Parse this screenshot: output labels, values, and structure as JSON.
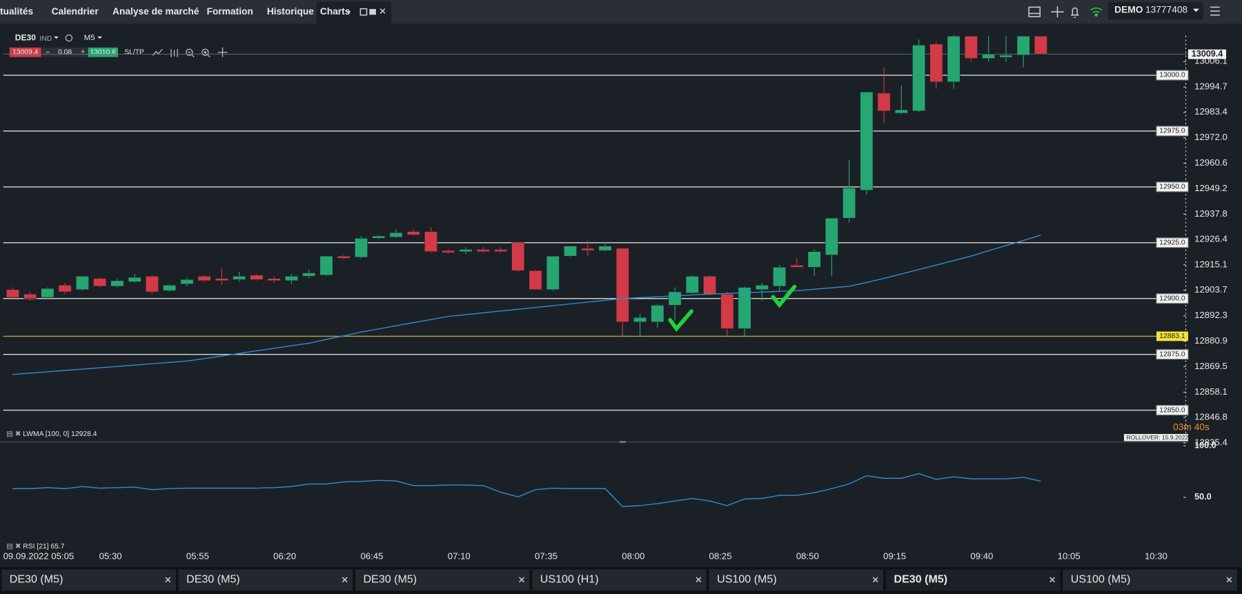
{
  "top_nav": {
    "tabs": [
      "tualités",
      "Calendrier",
      "Analyse de marché",
      "Formation",
      "Historique",
      "Charts"
    ],
    "account_mode": "DEMO",
    "account_number": "13777408"
  },
  "instrument": {
    "symbol": "DE30",
    "market": "IND",
    "timeframe": "M5",
    "bid": "13009.4",
    "spread": "0.08",
    "ask": "13010.6",
    "sltp": "SL/TP"
  },
  "price_chart": {
    "ylim": [
      12836.5,
      13020.2
    ],
    "yticks": [
      13006.1,
      12994.7,
      12983.4,
      {
        "value": 12972.0,
        "label": "12972.0"
      },
      12960.6,
      12949.2,
      12937.8,
      12926.4,
      12915.1,
      12903.7,
      12892.3,
      12880.9,
      12869.5,
      12858.1,
      12846.8,
      12835.4
    ],
    "levels": [
      {
        "value": 13000,
        "label": "13000.0"
      },
      {
        "value": 12975,
        "label": "12975.0"
      },
      {
        "value": 12950,
        "label": "12950.0"
      },
      {
        "value": 12925,
        "label": "12925.0"
      },
      {
        "value": 12900,
        "label": "12900.0"
      },
      {
        "value": 12875,
        "label": "12875.0"
      },
      {
        "value": 12850,
        "label": "12850.0"
      }
    ],
    "support_level": 12883.1,
    "current_price": 13009.4,
    "candles": {
      "open": [
        12904,
        12902,
        12900.5,
        12906,
        12904,
        12909,
        12905.5,
        12907.5,
        12910,
        12903.5,
        12906.5,
        12910,
        12909,
        12908.5,
        12910.5,
        12909,
        12908,
        12910,
        12910.5,
        12919,
        12918.5,
        12927,
        12927.5,
        12930,
        12930,
        12921.5,
        12921,
        12922,
        12922,
        12925,
        12912.5,
        12904,
        12919,
        12922.5,
        12921.5,
        12922.5,
        12889.5,
        12889.5,
        12897,
        12902.5,
        12910,
        12902,
        12886.5,
        12904,
        12905.5,
        12915,
        12914,
        12919.5,
        12936,
        12948.5,
        12992,
        12983,
        12984,
        13014,
        12997,
        13017.5,
        13007.5,
        13008,
        13009,
        13017.5
      ],
      "high": [
        12905,
        12903,
        12905,
        12907,
        12910,
        12909.5,
        12909,
        12911,
        12910.5,
        12906.5,
        12909.5,
        12910.5,
        12913.5,
        12912,
        12911,
        12910,
        12911,
        12913,
        12919,
        12919.5,
        12928,
        12928.5,
        12931,
        12931,
        12932,
        12922,
        12923,
        12923,
        12923,
        12925.5,
        12913,
        12919,
        12923.5,
        12926,
        12924.5,
        12922.5,
        12893,
        12897.5,
        12905,
        12910.5,
        12910.5,
        12903,
        12905.5,
        12907,
        12915,
        12918,
        12922,
        12929,
        12962,
        12992.5,
        13003.5,
        12995.5,
        13016,
        13015,
        13018,
        13017.5,
        13017.5,
        13017.5,
        13017.5,
        13017.5
      ],
      "low": [
        12899.5,
        12899,
        12900,
        12902,
        12903.5,
        12905,
        12905,
        12907,
        12902,
        12903,
        12905.5,
        12907.5,
        12906,
        12907.5,
        12908,
        12907,
        12906.5,
        12909,
        12910,
        12917.5,
        12918,
        12926.5,
        12927,
        12928,
        12920.5,
        12920,
        12920,
        12920.5,
        12920.5,
        12912,
        12904,
        12903.5,
        12918.5,
        12919,
        12921,
        12883,
        12883,
        12887,
        12890,
        12902,
        12901.5,
        12883,
        12883,
        12899,
        12903,
        12914,
        12910,
        12910,
        12934,
        12946.5,
        12978.5,
        12982.5,
        12983.5,
        12994,
        12994,
        13006,
        13006,
        13006,
        13003.5,
        13009.5
      ],
      "close": [
        12900.5,
        12900,
        12904.5,
        12903,
        12910,
        12905.5,
        12908,
        12909.5,
        12903,
        12906,
        12908.5,
        12908,
        12908,
        12910,
        12908.5,
        12908,
        12910,
        12911.5,
        12919,
        12918,
        12927,
        12928,
        12929.5,
        12928.5,
        12921,
        12920.5,
        12922,
        12921,
        12921,
        12912.5,
        12904,
        12919,
        12923.5,
        12921.5,
        12923.5,
        12889.5,
        12891.5,
        12897,
        12903,
        12910,
        12902,
        12886.5,
        12905,
        12906,
        12914,
        12914,
        12921,
        12936,
        12949.5,
        12992.5,
        12984,
        12984.5,
        13013.5,
        12997,
        13017.5,
        13007.5,
        13009.5,
        13009,
        13017.5,
        13009.5
      ]
    },
    "lwma": [
      12866,
      12866.6,
      12867.2,
      12867.8,
      12868.4,
      12869,
      12869.6,
      12870.2,
      12870.8,
      12871.4,
      12872,
      12873.1,
      12874.3,
      12875.4,
      12876.6,
      12877.7,
      12878.9,
      12880,
      12881.7,
      12883.3,
      12885,
      12886.4,
      12887.8,
      12889.2,
      12890.6,
      12892,
      12892.8,
      12893.6,
      12894.4,
      12895.2,
      12896,
      12896.8,
      12897.6,
      12898.4,
      12899.2,
      12900,
      12900.4,
      12900.8,
      12901.2,
      12901.6,
      12902,
      12902.3,
      12902.6,
      12902.9,
      12903.2,
      12903.5,
      12904.2,
      12904.8,
      12905.5,
      12907.2,
      12909,
      12911,
      12913,
      12915,
      12917,
      12919,
      12921.4,
      12923.7,
      12926,
      12928.4
    ],
    "lwma_label": "LWMA [100, 0] 12928.4",
    "countdown": "03m 40s",
    "rollover": "ROLLOVER: 15.9.2022"
  },
  "rsi": {
    "label": "RSI [21] 65.7",
    "ylim": [
      0,
      100
    ],
    "yticks": [
      {
        "value": 100,
        "label": "100.0"
      },
      {
        "value": 50,
        "label": "50.0"
      }
    ],
    "values": [
      58.5,
      58.5,
      59.5,
      58.5,
      60.5,
      59,
      59.5,
      60,
      57.5,
      58.5,
      59,
      59,
      59,
      59,
      59,
      59.5,
      60.5,
      63,
      63,
      65,
      65.5,
      66.5,
      66,
      61.5,
      61.5,
      62,
      62,
      61.5,
      55,
      50.5,
      57.5,
      59,
      58.5,
      58.5,
      58.5,
      41,
      42,
      44,
      46.5,
      49,
      46.5,
      42,
      48.5,
      49,
      52,
      52,
      54.5,
      58.5,
      63,
      71,
      68.5,
      68.5,
      73,
      67.5,
      70,
      68,
      68,
      68,
      69.5,
      65.7
    ]
  },
  "time_axis": [
    "09.09.2022 05:05",
    "05:30",
    "05:55",
    "06:20",
    "06:45",
    "07:10",
    "07:35",
    "08:00",
    "08:25",
    "08:50",
    "09:15",
    "09:40",
    "10:05",
    "10:30"
  ],
  "bottom_tabs": [
    "DE30 (M5)",
    "DE30 (M5)",
    "DE30 (M5)",
    "US100 (H1)",
    "US100 (M5)",
    "DE30 (M5)",
    "US100 (M5)"
  ]
}
